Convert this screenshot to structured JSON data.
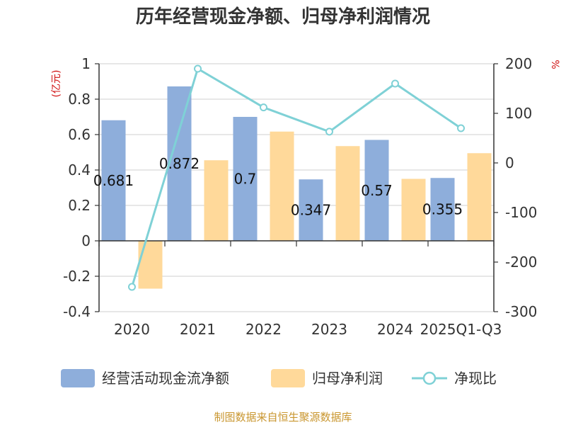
{
  "colors": {
    "operating_cash_flow": "#8eaedb",
    "parent_net_profit": "#ffd99a",
    "ratio_line": "#7fd1d6",
    "unit_red": "#d01010",
    "source_gold": "#c9962f"
  },
  "chart_data": {
    "type": "bar",
    "title": "历年经营现金净额、归母净利润情况",
    "left_unit": "(亿元)",
    "right_unit": "%",
    "categories": [
      "2020",
      "2021",
      "2022",
      "2023",
      "2024",
      "2025Q1-Q3"
    ],
    "left_ylim": [
      -0.4,
      1
    ],
    "left_ticks": [
      "1",
      "0.8",
      "0.6",
      "0.4",
      "0.2",
      "0",
      "-0.2",
      "-0.4"
    ],
    "right_ylim": [
      -300,
      200
    ],
    "right_ticks": [
      "200",
      "100",
      "0",
      "-100",
      "-200",
      "-300"
    ],
    "series": [
      {
        "name": "经营活动现金流净额",
        "type": "bar",
        "axis": "left",
        "values": [
          0.681,
          0.872,
          0.7,
          0.347,
          0.57,
          0.355
        ],
        "labels": [
          "0.681",
          "0.872",
          "0.7",
          "0.347",
          "0.57",
          "0.355"
        ]
      },
      {
        "name": "归母净利润",
        "type": "bar",
        "axis": "left",
        "values": [
          -0.27,
          0.455,
          0.617,
          0.535,
          0.35,
          0.495
        ]
      },
      {
        "name": "净现比",
        "type": "line",
        "axis": "right",
        "values": [
          -250,
          190,
          112,
          63,
          160,
          70
        ]
      }
    ],
    "grid": true,
    "legend_position": "bottom"
  },
  "source": "制图数据来自恒生聚源数据库"
}
